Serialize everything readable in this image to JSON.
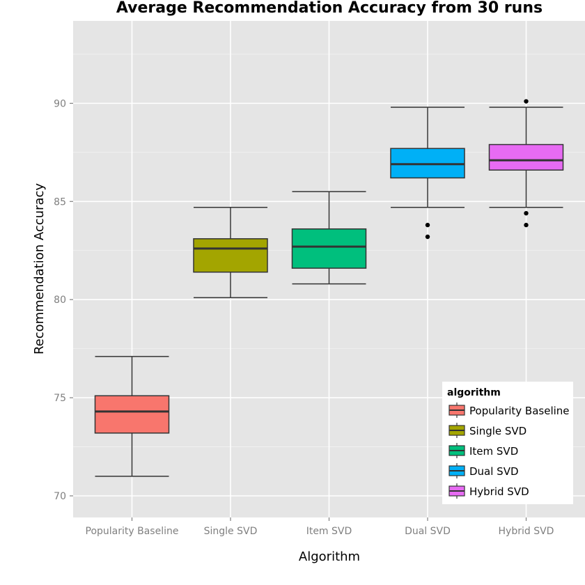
{
  "chart_data": {
    "type": "boxplot",
    "title": "Average Recommendation Accuracy from 30 runs",
    "xlabel": "Algorithm",
    "ylabel": "Recommendation Accuracy",
    "ylim": [
      68.9,
      94.2
    ],
    "yticks": [
      70,
      75,
      80,
      85,
      90
    ],
    "grid": true,
    "legend": {
      "title": "algorithm",
      "placement": "bottom-right"
    },
    "categories": [
      "Popularity Baseline",
      "Single SVD",
      "Item SVD",
      "Dual SVD",
      "Hybrid SVD"
    ],
    "series": [
      {
        "name": "Popularity Baseline",
        "color": "#F8766D",
        "min": 71.0,
        "q1": 73.2,
        "median": 74.3,
        "q3": 75.1,
        "max": 77.1,
        "outliers": []
      },
      {
        "name": "Single SVD",
        "color": "#A3A500",
        "min": 80.1,
        "q1": 81.4,
        "median": 82.6,
        "q3": 83.1,
        "max": 84.7,
        "outliers": []
      },
      {
        "name": "Item SVD",
        "color": "#00BF7D",
        "min": 80.8,
        "q1": 81.6,
        "median": 82.7,
        "q3": 83.6,
        "max": 85.5,
        "outliers": []
      },
      {
        "name": "Dual SVD",
        "color": "#00B0F6",
        "min": 84.7,
        "q1": 86.2,
        "median": 86.9,
        "q3": 87.7,
        "max": 89.8,
        "outliers": [
          83.8,
          83.2
        ]
      },
      {
        "name": "Hybrid SVD",
        "color": "#E76BF3",
        "min": 84.7,
        "q1": 86.6,
        "median": 87.1,
        "q3": 87.9,
        "max": 89.8,
        "outliers": [
          90.1,
          84.4,
          83.8
        ]
      }
    ]
  }
}
